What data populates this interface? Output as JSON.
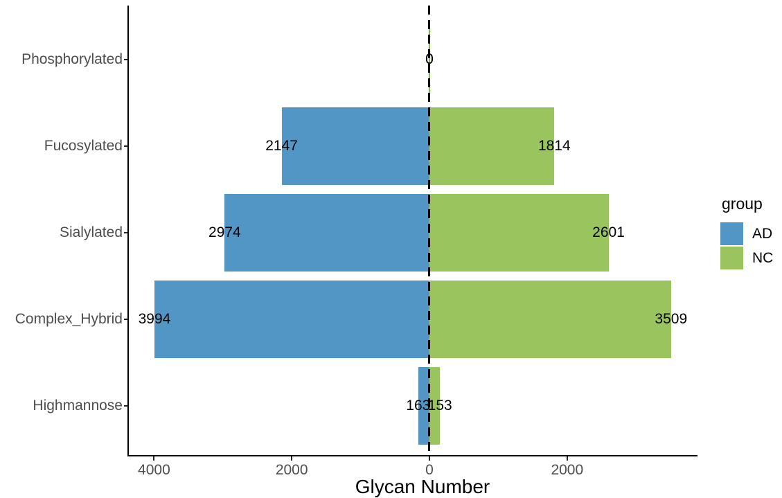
{
  "chart_data": {
    "type": "bar",
    "variant": "diverging-horizontal-pyramid",
    "title": "",
    "xlabel": "Glycan Number",
    "ylabel": "",
    "categories": [
      "Phosphorylated",
      "Fucosylated",
      "Sialylated",
      "Complex_Hybrid",
      "Highmannose"
    ],
    "series": [
      {
        "name": "AD",
        "side": "left",
        "color": "#5296C5",
        "values": [
          0,
          2147,
          2974,
          3994,
          163
        ]
      },
      {
        "name": "NC",
        "side": "right",
        "color": "#9AC45E",
        "values": [
          0,
          1814,
          2601,
          3509,
          153
        ]
      }
    ],
    "value_labels_shown": true,
    "x_axis": {
      "ticks": [
        {
          "value": -4000,
          "label": "4000"
        },
        {
          "value": -2000,
          "label": "2000"
        },
        {
          "value": 0,
          "label": "0"
        },
        {
          "value": 2000,
          "label": "2000"
        }
      ],
      "range": [
        -4369,
        3884
      ]
    },
    "center_line": {
      "value": 0,
      "style": "dashed",
      "color": "#000000"
    },
    "grid": "off",
    "legend": {
      "title": "group",
      "position": "right",
      "entries": [
        {
          "label": "AD",
          "color": "#5296C5"
        },
        {
          "label": "NC",
          "color": "#9AC45E"
        }
      ]
    },
    "text_colors": {
      "axis_text": "#4D4D4D",
      "axis_title": "#000000",
      "value_labels": "#000000"
    }
  }
}
